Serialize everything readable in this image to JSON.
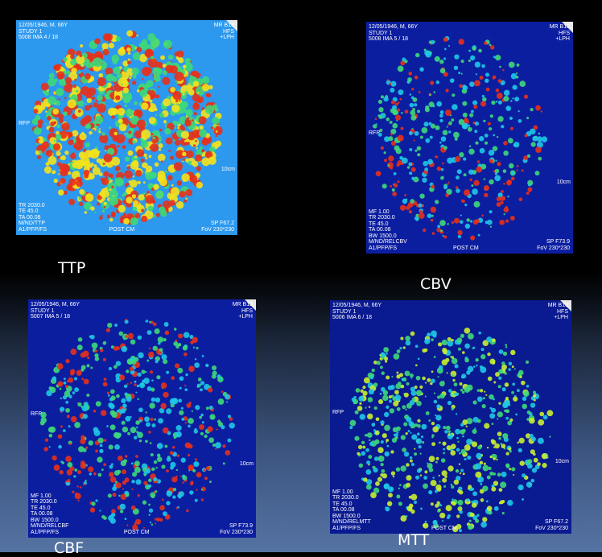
{
  "panels": [
    {
      "label": "TTP",
      "overlay": {
        "top_left": [
          "12/05/1946, M, 66Y",
          "STUDY 1",
          "5008 IMA 4 / 18"
        ],
        "top_right": [
          "MR B13",
          "HFS",
          "+LPH"
        ],
        "left": "RFP",
        "right": "10cm",
        "bottom_left": [
          "TR 2030.0",
          "TE 45.0",
          "TA 00.08",
          "M/ND/TTP",
          "A1/PFP/FS"
        ],
        "bottom_right": [
          "SP F67.2",
          "FoV 230*230"
        ],
        "bottom_center": "POST CM"
      }
    },
    {
      "label": "CBV",
      "overlay": {
        "top_left": [
          "12/05/1946, M, 66Y",
          "STUDY 1",
          "5008 IMA 5 / 18"
        ],
        "top_right": [
          "MR B13",
          "HFS",
          "+LPH"
        ],
        "left": "RFP",
        "right": "10cm",
        "bottom_left": [
          "MF 1.00",
          "TR 2030.0",
          "TE 45.0",
          "TA 00.08",
          "BW 1500.0",
          "M/ND/RELCBV",
          "A1/PFP/FS"
        ],
        "bottom_right": [
          "SP F73.9",
          "FoV 230*230"
        ],
        "bottom_center": "POST CM"
      }
    },
    {
      "label": "CBF",
      "overlay": {
        "top_left": [
          "12/05/1946, M, 66Y",
          "STUDY 1",
          "5007 IMA 5 / 18"
        ],
        "top_right": [
          "MR B13",
          "HFS",
          "+LPH"
        ],
        "left": "RFP",
        "right": "10cm",
        "bottom_left": [
          "MF 1.00",
          "TR 2030.0",
          "TE 45.0",
          "TA 00.08",
          "BW 1500.0",
          "M/ND/RELCBF",
          "A1/PFP/FS"
        ],
        "bottom_right": [
          "SP F73.9",
          "FoV 230*230"
        ],
        "bottom_center": "POST CM"
      }
    },
    {
      "label": "MTT",
      "overlay": {
        "top_left": [
          "12/05/1946, M, 66Y",
          "STUDY 1",
          "5006 IMA 6 / 18"
        ],
        "top_right": [
          "MR B13",
          "HFS",
          "+LPH"
        ],
        "left": "RFP",
        "right": "10cm",
        "bottom_left": [
          "MF 1.00",
          "TR 2030.0",
          "TE 45.0",
          "TA 00.08",
          "BW 1500.0",
          "M/ND/RELMTT",
          "A1/PFP/FS"
        ],
        "bottom_right": [
          "SP F67.2",
          "FoV 230*230"
        ],
        "bottom_center": "POST CM"
      }
    }
  ]
}
